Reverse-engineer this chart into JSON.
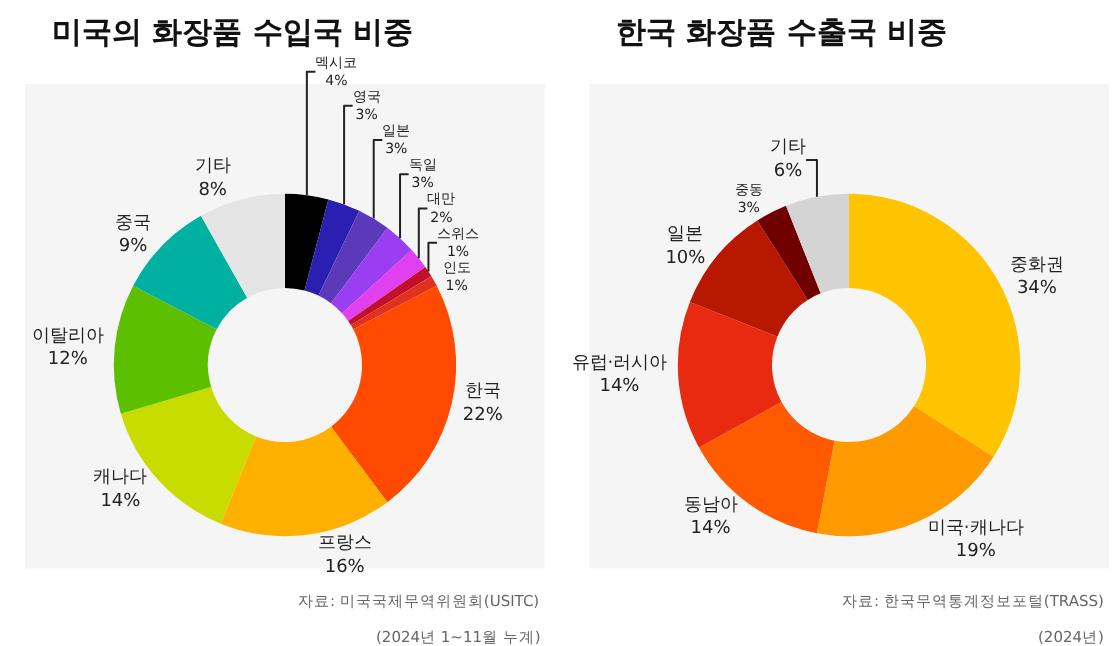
{
  "chart_data": [
    {
      "type": "donut",
      "title": "미국의 화장품 수입국 비중",
      "categories": [
        "멕시코",
        "영국",
        "일본",
        "독일",
        "대만",
        "스위스",
        "인도",
        "한국",
        "프랑스",
        "캐나다",
        "이탈리아",
        "중국",
        "기타"
      ],
      "values": [
        4,
        3,
        3,
        3,
        2,
        1,
        1,
        22,
        16,
        14,
        12,
        9,
        8
      ],
      "value_labels": [
        "4%",
        "3%",
        "3%",
        "3%",
        "2%",
        "1%",
        "1%",
        "22%",
        "16%",
        "14%",
        "12%",
        "9%",
        "8%"
      ],
      "colors": [
        "#000000",
        "#2a1fb0",
        "#5a3ab8",
        "#9b3df0",
        "#e040f0",
        "#c0102a",
        "#e03020",
        "#ff4a00",
        "#ffb000",
        "#c8dc00",
        "#5cc000",
        "#00b0a0",
        "#e4e4e4"
      ],
      "annotations": [
        "자료: 미국국제무역위원회(USITC)",
        "(2024년 1~11월 누계)"
      ]
    },
    {
      "type": "donut",
      "title": "한국 화장품 수출국 비중",
      "categories": [
        "중화권",
        "미국·캐나다",
        "동남아",
        "유럽·러시아",
        "일본",
        "중동",
        "기타"
      ],
      "values": [
        34,
        19,
        14,
        14,
        10,
        3,
        6
      ],
      "value_labels": [
        "34%",
        "19%",
        "14%",
        "14%",
        "10%",
        "3%",
        "6%"
      ],
      "colors": [
        "#ffc400",
        "#ff9a00",
        "#ff5a00",
        "#e82a10",
        "#b81800",
        "#700000",
        "#d4d4d4"
      ],
      "annotations": [
        "자료: 한국무역통계정보포털(TRASS)",
        "(2024년)"
      ]
    }
  ]
}
